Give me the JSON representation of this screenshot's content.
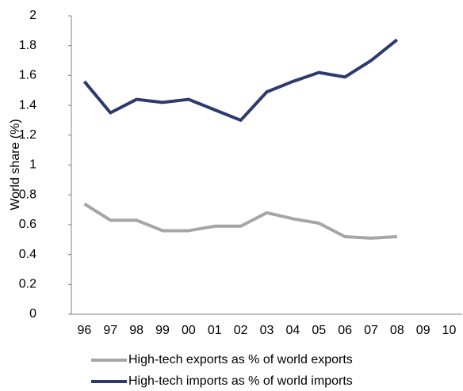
{
  "chart_data": {
    "type": "line",
    "y_label": "World share (%)",
    "categories": [
      "96",
      "97",
      "98",
      "99",
      "00",
      "01",
      "02",
      "03",
      "04",
      "05",
      "06",
      "07",
      "08",
      "09",
      "10"
    ],
    "series": [
      {
        "name": "High-tech exports as % of world exports",
        "color": "#a6a6a6",
        "values": [
          0.74,
          0.63,
          0.63,
          0.56,
          0.56,
          0.59,
          0.59,
          0.68,
          0.64,
          0.61,
          0.52,
          0.51,
          0.52,
          null,
          null
        ]
      },
      {
        "name": "High-tech imports as % of world imports",
        "color": "#2e3a6e",
        "values": [
          1.56,
          1.35,
          1.44,
          1.42,
          1.44,
          1.37,
          1.3,
          1.49,
          1.56,
          1.62,
          1.59,
          1.7,
          1.84,
          null,
          null
        ]
      }
    ],
    "ylim": [
      0,
      2
    ],
    "yticks": [
      0,
      0.2,
      0.4,
      0.6,
      0.8,
      1,
      1.2,
      1.4,
      1.6,
      1.8,
      2
    ],
    "grid": false,
    "legend": "bottom"
  }
}
